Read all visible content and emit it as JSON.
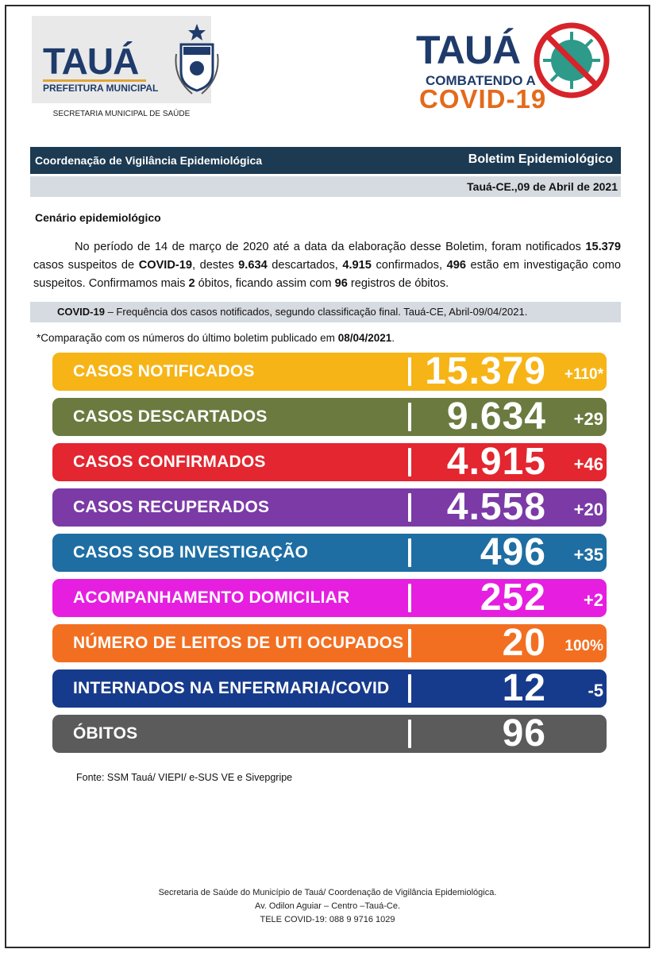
{
  "header": {
    "left_logo_brand": "TAUÁ",
    "left_logo_sub": "PREFEITURA MUNICIPAL",
    "secretaria": "SECRETARIA MUNICIPAL DE SAÚDE",
    "right_logo_title": "TAUÁ",
    "right_logo_sub": "COMBATENDO A",
    "right_logo_covid": "COVID-19"
  },
  "band": {
    "left": "Coordenação de Vigilância Epidemiológica",
    "right": "Boletim Epidemiológico",
    "date": "Tauá-CE.,09 de Abril de 2021"
  },
  "section_title": "Cenário epidemiológico",
  "paragraph": {
    "t1": "No período de 14 de março de 2020 até a data da elaboração desse Boletim, foram notificados ",
    "b1": "15.379",
    "t2": " casos suspeitos de ",
    "b2": "COVID-19",
    "t3": ", destes ",
    "b3": "9.634",
    "t4": " descartados, ",
    "b4": "4.915",
    "t5": " confirmados, ",
    "b5": "496",
    "t6": " estão em investigação como suspeitos. Confirmamos mais ",
    "b6": "2",
    "t7": " óbitos, ficando assim com ",
    "b7": "96",
    "t8": " registros de óbitos."
  },
  "caption": {
    "bold": "COVID-19",
    "text": " – Frequência dos casos notificados, segundo classificação final. Tauá-CE, Abril-09/04/2021."
  },
  "comparison": {
    "text": "*Comparação com os números do último boletim publicado em ",
    "date": "08/04/2021",
    "end": "."
  },
  "stats": [
    {
      "label": "CASOS NOTIFICADOS",
      "value": "15.379",
      "delta": "+110*",
      "color": "#f6b417"
    },
    {
      "label": "CASOS DESCARTADOS",
      "value": "9.634",
      "delta": "+29",
      "color": "#6b7a3f"
    },
    {
      "label": "CASOS CONFIRMADOS",
      "value": "4.915",
      "delta": "+46",
      "color": "#e3262f"
    },
    {
      "label": "CASOS RECUPERADOS",
      "value": "4.558",
      "delta": "+20",
      "color": "#7b3aa6"
    },
    {
      "label": "CASOS SOB INVESTIGAÇÃO",
      "value": "496",
      "delta": "+35",
      "color": "#1e6ea3"
    },
    {
      "label": "ACOMPANHAMENTO DOMICILIAR",
      "value": "252",
      "delta": "+2",
      "color": "#e61ee0"
    },
    {
      "label": "NÚMERO DE LEITOS DE UTI OCUPADOS",
      "value": "20",
      "delta": "100%",
      "color": "#f26f21"
    },
    {
      "label": "INTERNADOS NA ENFERMARIA/COVID",
      "value": "12",
      "delta": "-5",
      "color": "#173b8c"
    },
    {
      "label": "ÓBITOS",
      "value": "96",
      "delta": "",
      "color": "#5b5b5b"
    }
  ],
  "fonte": "Fonte: SSM Tauá/ VIEPI/ e-SUS VE e Sivepgripe",
  "footer": {
    "line1": "Secretaria de Saúde do Município de Tauá/ Coordenação de Vigilância Epidemiológica.",
    "line2": "Av. Odilon Aguiar – Centro –Tauá-Ce.",
    "line3": "TELE COVID-19: 088 9 9716 1029"
  }
}
